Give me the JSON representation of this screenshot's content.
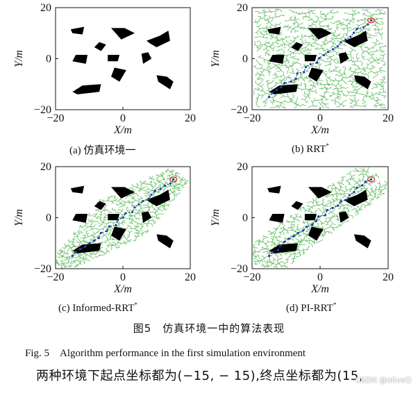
{
  "axes": {
    "xlim": [
      -20,
      20
    ],
    "ylim": [
      -20,
      20
    ],
    "xticks": [
      "−20",
      "0",
      "20"
    ],
    "yticks": [
      "20",
      "0",
      "−20"
    ],
    "xlabel": "X/m",
    "ylabel": "Y/m"
  },
  "obstacles": [
    [
      [
        -15.5,
        11.5
      ],
      [
        -11.5,
        12.5
      ],
      [
        -12,
        9.5
      ],
      [
        -15,
        10
      ]
    ],
    [
      [
        -3.5,
        12
      ],
      [
        0.5,
        12
      ],
      [
        3.5,
        10
      ],
      [
        -0.5,
        7.5
      ]
    ],
    [
      [
        -7,
        6.5
      ],
      [
        -5,
        5.5
      ],
      [
        -6.5,
        3
      ],
      [
        -8.5,
        4.5
      ]
    ],
    [
      [
        7,
        7
      ],
      [
        11,
        9
      ],
      [
        13.5,
        11
      ],
      [
        14,
        7
      ],
      [
        10,
        4.5
      ],
      [
        8,
        6
      ]
    ],
    [
      [
        -14,
        1.5
      ],
      [
        -10.5,
        1.5
      ],
      [
        -11,
        -2
      ],
      [
        -15,
        -1
      ]
    ],
    [
      [
        -4.5,
        1.5
      ],
      [
        -1,
        1.5
      ],
      [
        -1.5,
        -1
      ],
      [
        -4.5,
        -1
      ]
    ],
    [
      [
        5.5,
        2
      ],
      [
        7.5,
        2.5
      ],
      [
        8.5,
        0
      ],
      [
        6,
        -2
      ]
    ],
    [
      [
        -2.5,
        -3.5
      ],
      [
        1,
        -4.5
      ],
      [
        -1,
        -9
      ],
      [
        -3.5,
        -7
      ]
    ],
    [
      [
        10,
        -6.5
      ],
      [
        13,
        -7
      ],
      [
        15,
        -9
      ],
      [
        14,
        -12
      ],
      [
        10.5,
        -9
      ]
    ],
    [
      [
        -12,
        -10.5
      ],
      [
        -6.5,
        -10
      ],
      [
        -7,
        -13
      ],
      [
        -13.5,
        -14
      ],
      [
        -15,
        -13
      ]
    ]
  ],
  "panels": [
    {
      "caption": "(a) 仿真环境一",
      "method": "none"
    },
    {
      "caption": "(b) RRT",
      "sup": "*",
      "method": "RRT*"
    },
    {
      "caption": "(c) Informed-RRT",
      "sup": "*",
      "method": "Informed-RRT*"
    },
    {
      "caption": "(d) PI-RRT",
      "sup": "*",
      "method": "PI-RRT*"
    }
  ],
  "start": [
    -15,
    -15
  ],
  "goal": [
    15,
    15
  ],
  "colors": {
    "tree": "#5cb85c",
    "path": "#1f3f9a",
    "goal_marker": "#e0302e",
    "obstacle": "#000000"
  },
  "figure_title_cn": "图5　仿真环境一中的算法表现",
  "figure_title_en": "Fig. 5　Algorithm performance in the first simulation environment",
  "body_text": "两种环境下起点坐标都为(−15, − 15),终点坐标都为(15,",
  "watermark": "CSDN @oliveQ"
}
